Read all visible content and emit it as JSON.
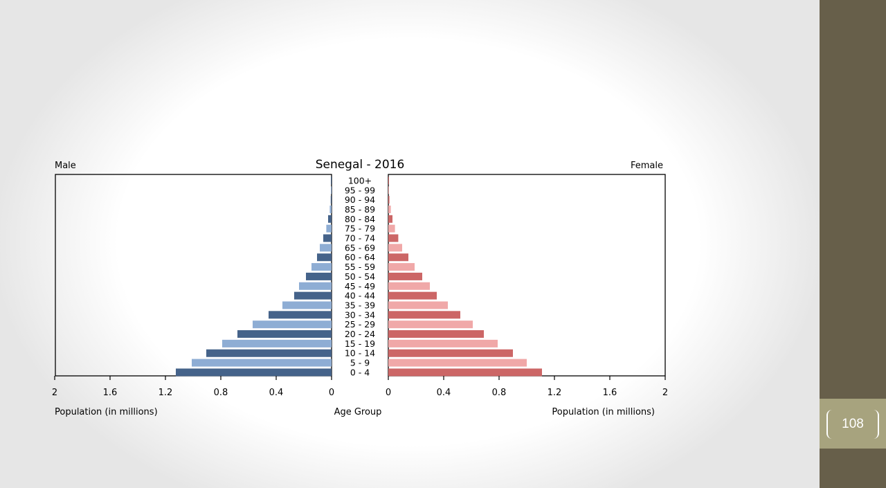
{
  "slide": {
    "page_number": "108"
  },
  "colors": {
    "male_dark": "#45638a",
    "male_light": "#8eadd4",
    "female_dark": "#cc6666",
    "female_light": "#f0a8a8",
    "sidebar": "#675f4a",
    "page_box": "#a7a37e"
  },
  "chart_data": {
    "type": "bar",
    "subtype": "population-pyramid",
    "title": "Senegal - 2016",
    "left_label": "Male",
    "right_label": "Female",
    "xlabel_left": "Population (in millions)",
    "xlabel_center": "Age Group",
    "xlabel_right": "Population (in millions)",
    "xlim": [
      0,
      2
    ],
    "ticks": [
      "2",
      "1.6",
      "1.2",
      "0.8",
      "0.4",
      "0",
      "0",
      "0.4",
      "0.8",
      "1.2",
      "1.6",
      "2"
    ],
    "categories": [
      "100+",
      "95 - 99",
      "90 - 94",
      "85 - 89",
      "80 - 84",
      "75 - 79",
      "70 - 74",
      "65 - 69",
      "60 - 64",
      "55 - 59",
      "50 - 54",
      "45 - 49",
      "40 - 44",
      "35 - 39",
      "30 - 34",
      "25 - 29",
      "20 - 24",
      "15 - 19",
      "10 - 14",
      "5 - 9",
      "0 - 4"
    ],
    "series": [
      {
        "name": "Male",
        "values": [
          0.001,
          0.003,
          0.006,
          0.013,
          0.025,
          0.038,
          0.06,
          0.085,
          0.105,
          0.145,
          0.185,
          0.235,
          0.27,
          0.355,
          0.455,
          0.57,
          0.68,
          0.79,
          0.905,
          1.01,
          1.125
        ]
      },
      {
        "name": "Female",
        "values": [
          0.001,
          0.004,
          0.008,
          0.018,
          0.03,
          0.048,
          0.072,
          0.1,
          0.145,
          0.19,
          0.245,
          0.3,
          0.35,
          0.43,
          0.52,
          0.61,
          0.69,
          0.79,
          0.9,
          1.0,
          1.11
        ]
      }
    ]
  }
}
